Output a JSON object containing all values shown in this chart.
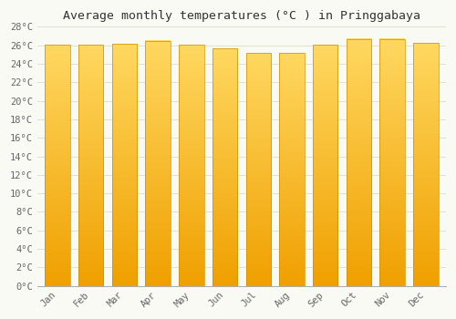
{
  "title": "Average monthly temperatures (°C ) in Pringgabaya",
  "months": [
    "Jan",
    "Feb",
    "Mar",
    "Apr",
    "May",
    "Jun",
    "Jul",
    "Aug",
    "Sep",
    "Oct",
    "Nov",
    "Dec"
  ],
  "temperatures": [
    26.1,
    26.1,
    26.2,
    26.5,
    26.1,
    25.7,
    25.2,
    25.2,
    26.1,
    26.7,
    26.7,
    26.3
  ],
  "bar_color_light": "#FFD060",
  "bar_color_dark": "#F0A000",
  "bar_edge_color": "#D09000",
  "background_color": "#FAFAF5",
  "plot_bg_color": "#FAFAF5",
  "grid_color": "#DDDDCC",
  "ylim": [
    0,
    28
  ],
  "yticks": [
    0,
    2,
    4,
    6,
    8,
    10,
    12,
    14,
    16,
    18,
    20,
    22,
    24,
    26,
    28
  ],
  "title_fontsize": 9.5,
  "tick_fontsize": 7.5,
  "title_font": "monospace",
  "tick_font": "monospace",
  "bar_width": 0.75
}
